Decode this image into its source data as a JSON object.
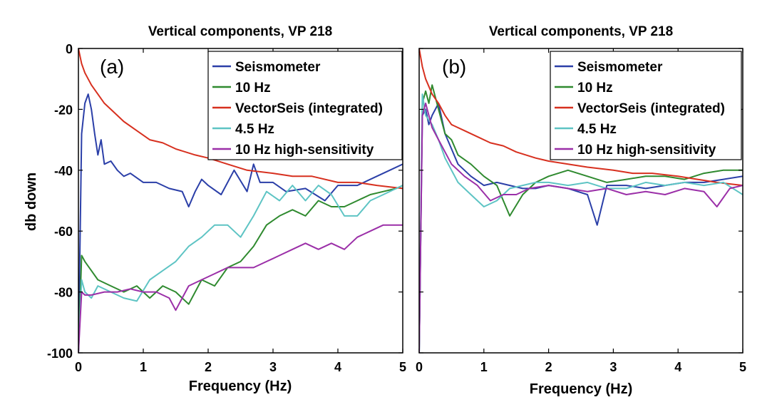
{
  "chart_data": [
    {
      "type": "line",
      "panel_label": "(a)",
      "title": "Vertical components, VP 218",
      "xlabel": "Frequency (Hz)",
      "ylabel": "db down",
      "xlim": [
        0,
        5
      ],
      "ylim": [
        -100,
        0
      ],
      "xticks": [
        "0",
        "1",
        "2",
        "3",
        "4",
        "5"
      ],
      "yticks": [
        "0",
        "-20",
        "-40",
        "-60",
        "-80",
        "-100"
      ],
      "grid": false,
      "legend_position": "top-right",
      "series": [
        {
          "name": "Seismometer",
          "color": "#2b3fa8",
          "x": [
            0,
            0.05,
            0.1,
            0.15,
            0.2,
            0.25,
            0.3,
            0.35,
            0.4,
            0.5,
            0.6,
            0.7,
            0.8,
            1.0,
            1.2,
            1.4,
            1.6,
            1.7,
            1.8,
            1.9,
            2.0,
            2.2,
            2.4,
            2.6,
            2.7,
            2.8,
            3.0,
            3.2,
            3.5,
            3.8,
            4.0,
            4.3,
            4.6,
            4.8,
            5.0
          ],
          "y": [
            -100,
            -28,
            -18,
            -15,
            -20,
            -28,
            -35,
            -30,
            -38,
            -37,
            -40,
            -42,
            -41,
            -44,
            -44,
            -46,
            -47,
            -52,
            -47,
            -43,
            -45,
            -48,
            -40,
            -47,
            -38,
            -44,
            -44,
            -47,
            -46,
            -50,
            -45,
            -45,
            -42,
            -40,
            -38
          ]
        },
        {
          "name": "10 Hz",
          "color": "#2f8a2f",
          "x": [
            0,
            0.05,
            0.1,
            0.2,
            0.3,
            0.5,
            0.7,
            0.9,
            1.1,
            1.3,
            1.5,
            1.7,
            1.9,
            2.1,
            2.3,
            2.5,
            2.7,
            2.9,
            3.1,
            3.3,
            3.5,
            3.7,
            3.9,
            4.1,
            4.3,
            4.5,
            4.7,
            4.9,
            5.0
          ],
          "y": [
            -100,
            -68,
            -70,
            -73,
            -76,
            -78,
            -80,
            -78,
            -82,
            -78,
            -80,
            -84,
            -76,
            -78,
            -72,
            -70,
            -65,
            -58,
            -55,
            -53,
            -55,
            -50,
            -52,
            -52,
            -50,
            -48,
            -47,
            -46,
            -45
          ]
        },
        {
          "name": "VectorSeis (integrated)",
          "color": "#d7301f",
          "x": [
            0,
            0.05,
            0.1,
            0.2,
            0.3,
            0.4,
            0.5,
            0.7,
            0.9,
            1.1,
            1.3,
            1.5,
            1.8,
            2.0,
            2.3,
            2.6,
            3.0,
            3.3,
            3.6,
            4.0,
            4.3,
            4.6,
            5.0
          ],
          "y": [
            0,
            -5,
            -8,
            -12,
            -15,
            -18,
            -20,
            -24,
            -27,
            -30,
            -31,
            -33,
            -35,
            -36,
            -38,
            -40,
            -41,
            -42,
            -42,
            -44,
            -44,
            -45,
            -46
          ]
        },
        {
          "name": "4.5 Hz",
          "color": "#5ec4c4",
          "x": [
            0,
            0.05,
            0.1,
            0.2,
            0.3,
            0.5,
            0.7,
            0.9,
            1.1,
            1.3,
            1.5,
            1.7,
            1.9,
            2.1,
            2.3,
            2.5,
            2.7,
            2.9,
            3.1,
            3.3,
            3.5,
            3.7,
            3.9,
            4.1,
            4.3,
            4.5,
            4.7,
            4.9,
            5.0
          ],
          "y": [
            -100,
            -76,
            -80,
            -82,
            -78,
            -80,
            -82,
            -83,
            -76,
            -73,
            -70,
            -65,
            -62,
            -58,
            -58,
            -62,
            -55,
            -47,
            -50,
            -45,
            -50,
            -45,
            -48,
            -55,
            -55,
            -50,
            -48,
            -46,
            -45
          ]
        },
        {
          "name": "10 Hz high-sensitivity",
          "color": "#9b2fa8",
          "x": [
            0,
            0.05,
            0.1,
            0.2,
            0.4,
            0.6,
            0.8,
            1.0,
            1.2,
            1.4,
            1.5,
            1.7,
            1.9,
            2.1,
            2.3,
            2.5,
            2.7,
            2.9,
            3.1,
            3.3,
            3.5,
            3.7,
            3.9,
            4.1,
            4.3,
            4.5,
            4.7,
            4.9,
            5.0
          ],
          "y": [
            -100,
            -80,
            -81,
            -81,
            -80,
            -80,
            -79,
            -80,
            -80,
            -82,
            -86,
            -78,
            -76,
            -74,
            -72,
            -72,
            -72,
            -70,
            -68,
            -66,
            -64,
            -66,
            -64,
            -66,
            -62,
            -60,
            -58,
            -58,
            -58
          ]
        }
      ]
    },
    {
      "type": "line",
      "panel_label": "(b)",
      "title": "Vertical components, VP 218",
      "xlabel": "Frequency (Hz)",
      "ylabel": "",
      "xlim": [
        0,
        5
      ],
      "ylim": [
        -100,
        0
      ],
      "xticks": [
        "0",
        "1",
        "2",
        "3",
        "4",
        "5"
      ],
      "yticks": [],
      "grid": false,
      "legend_position": "top-right",
      "series": [
        {
          "name": "Seismometer",
          "color": "#2b3fa8",
          "x": [
            0,
            0.05,
            0.1,
            0.15,
            0.2,
            0.3,
            0.4,
            0.5,
            0.6,
            0.8,
            1.0,
            1.2,
            1.4,
            1.6,
            1.8,
            2.0,
            2.3,
            2.6,
            2.75,
            2.9,
            3.2,
            3.5,
            3.8,
            4.1,
            4.4,
            4.7,
            5.0
          ],
          "y": [
            -100,
            -22,
            -20,
            -25,
            -22,
            -18,
            -28,
            -33,
            -38,
            -42,
            -45,
            -44,
            -45,
            -46,
            -46,
            -45,
            -46,
            -48,
            -58,
            -45,
            -45,
            -46,
            -45,
            -44,
            -44,
            -43,
            -42
          ]
        },
        {
          "name": "10 Hz",
          "color": "#2f8a2f",
          "x": [
            0,
            0.05,
            0.1,
            0.15,
            0.2,
            0.3,
            0.4,
            0.5,
            0.6,
            0.8,
            1.0,
            1.2,
            1.4,
            1.6,
            1.8,
            2.0,
            2.3,
            2.6,
            2.9,
            3.2,
            3.5,
            3.8,
            4.1,
            4.4,
            4.7,
            5.0
          ],
          "y": [
            -100,
            -18,
            -14,
            -18,
            -12,
            -20,
            -28,
            -30,
            -35,
            -38,
            -42,
            -45,
            -55,
            -48,
            -44,
            -42,
            -40,
            -42,
            -44,
            -43,
            -42,
            -42,
            -43,
            -41,
            -40,
            -40
          ]
        },
        {
          "name": "VectorSeis (integrated)",
          "color": "#d7301f",
          "x": [
            0,
            0.05,
            0.1,
            0.2,
            0.3,
            0.4,
            0.5,
            0.7,
            0.9,
            1.1,
            1.3,
            1.5,
            1.8,
            2.0,
            2.3,
            2.6,
            3.0,
            3.3,
            3.6,
            4.0,
            4.3,
            4.6,
            5.0
          ],
          "y": [
            0,
            -6,
            -10,
            -15,
            -18,
            -22,
            -25,
            -27,
            -29,
            -31,
            -32,
            -34,
            -36,
            -37,
            -38,
            -39,
            -40,
            -41,
            -41,
            -42,
            -43,
            -44,
            -45
          ]
        },
        {
          "name": "4.5 Hz",
          "color": "#5ec4c4",
          "x": [
            0,
            0.05,
            0.1,
            0.2,
            0.3,
            0.4,
            0.5,
            0.6,
            0.8,
            1.0,
            1.2,
            1.4,
            1.6,
            1.8,
            2.0,
            2.3,
            2.6,
            2.9,
            3.2,
            3.5,
            3.8,
            4.1,
            4.4,
            4.7,
            5.0
          ],
          "y": [
            -100,
            -15,
            -22,
            -25,
            -30,
            -36,
            -40,
            -44,
            -48,
            -52,
            -50,
            -46,
            -45,
            -44,
            -44,
            -45,
            -44,
            -46,
            -46,
            -44,
            -45,
            -44,
            -45,
            -44,
            -48
          ]
        },
        {
          "name": "10 Hz high-sensitivity",
          "color": "#9b2fa8",
          "x": [
            0,
            0.05,
            0.1,
            0.15,
            0.2,
            0.3,
            0.4,
            0.5,
            0.7,
            0.9,
            1.1,
            1.3,
            1.5,
            1.7,
            2.0,
            2.3,
            2.6,
            2.9,
            3.2,
            3.5,
            3.8,
            4.1,
            4.4,
            4.6,
            4.8,
            5.0
          ],
          "y": [
            -100,
            -22,
            -18,
            -22,
            -26,
            -30,
            -34,
            -38,
            -42,
            -45,
            -50,
            -48,
            -48,
            -46,
            -45,
            -46,
            -47,
            -46,
            -48,
            -47,
            -48,
            -46,
            -47,
            -52,
            -46,
            -45
          ]
        }
      ]
    }
  ]
}
